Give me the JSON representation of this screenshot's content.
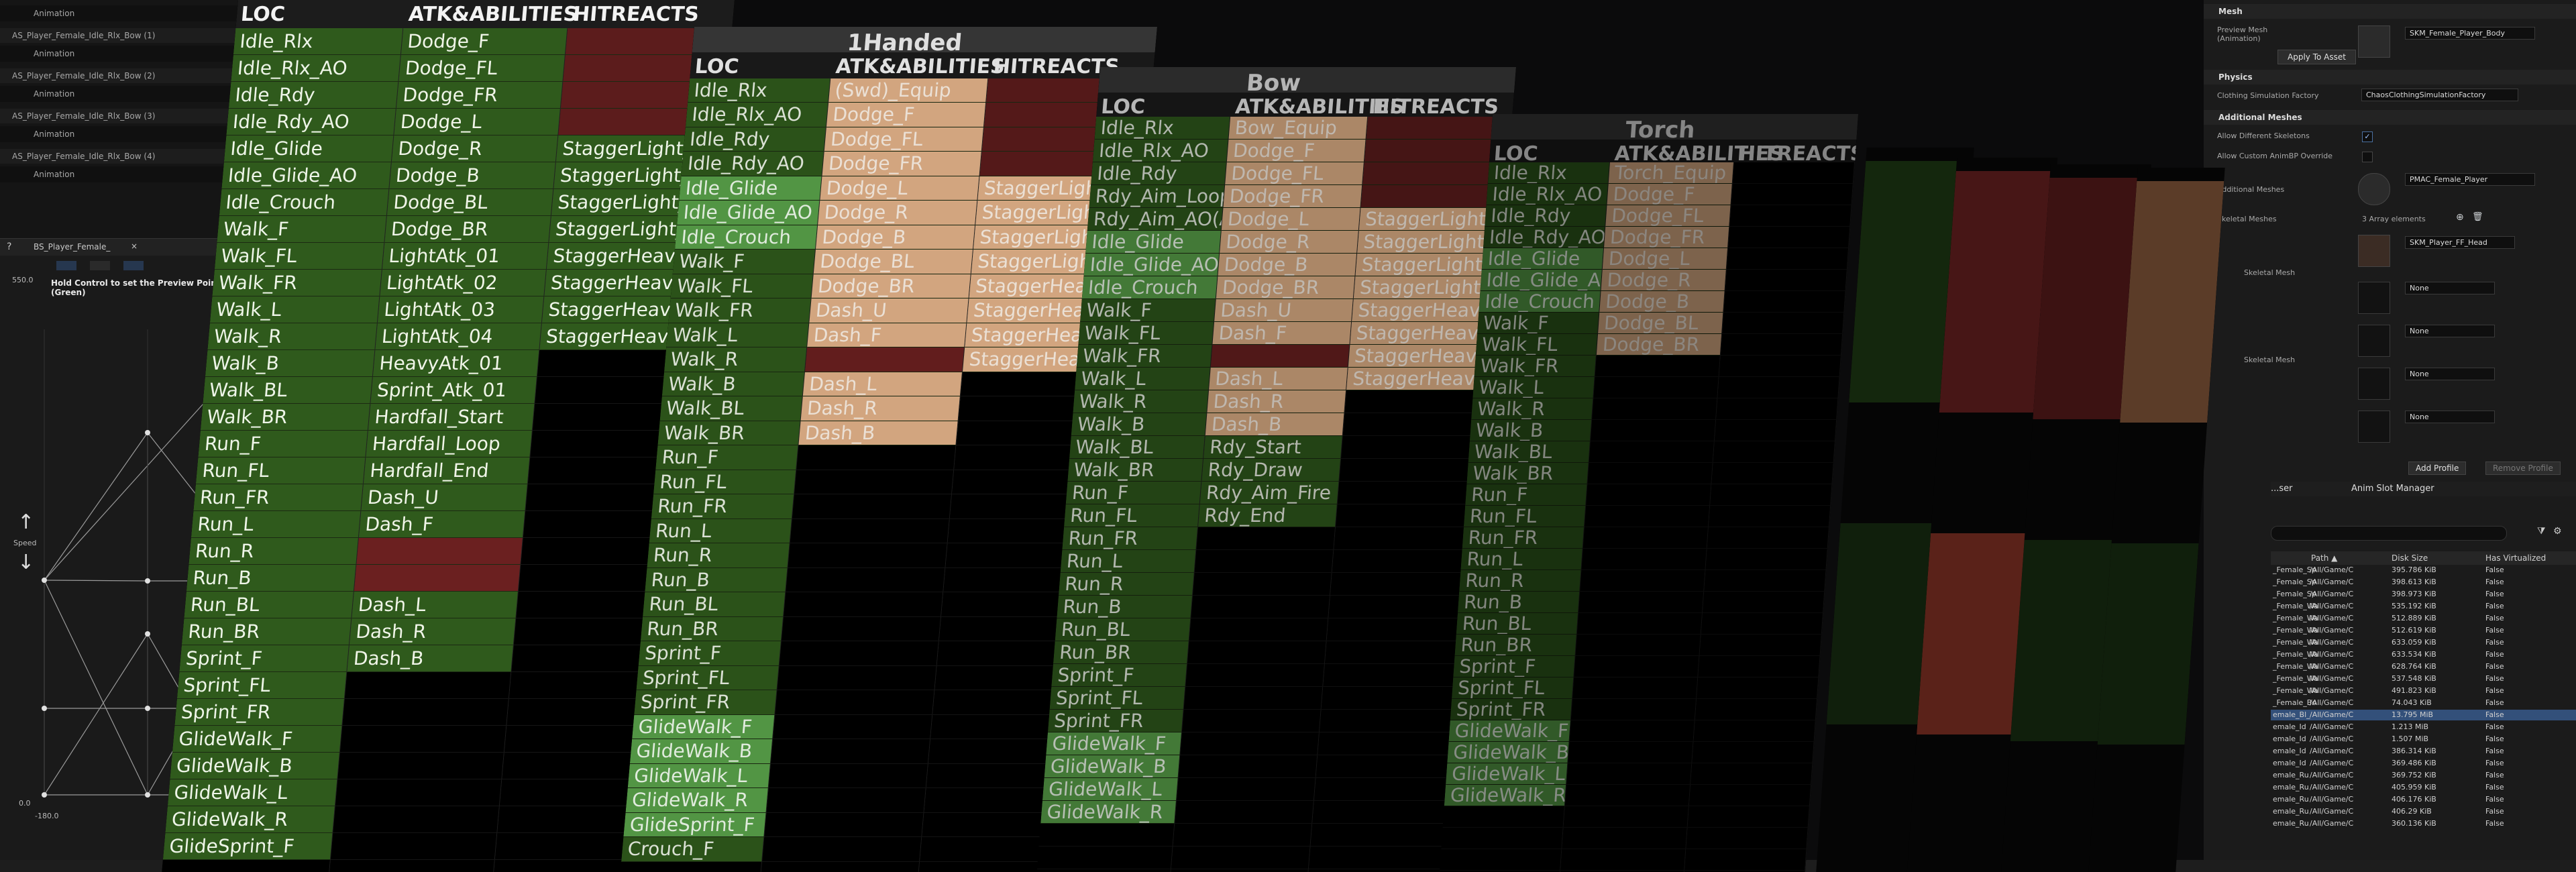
{
  "editor": {
    "left_rows": [
      {
        "kind": "sub",
        "text": "Animation"
      },
      {
        "kind": "grp",
        "text": "AS_Player_Female_Idle_Rlx_Bow (1)"
      },
      {
        "kind": "sub",
        "text": "Animation"
      },
      {
        "kind": "grp",
        "text": "AS_Player_Female_Idle_Rlx_Bow (2)"
      },
      {
        "kind": "sub",
        "text": "Animation"
      },
      {
        "kind": "grp",
        "text": "AS_Player_Female_Idle_Rlx_Bow (3)"
      },
      {
        "kind": "sub",
        "text": "Animation"
      },
      {
        "kind": "grp",
        "text": "AS_Player_Female_Idle_Rlx_Bow (4)"
      },
      {
        "kind": "sub",
        "text": "Animation"
      }
    ],
    "blendspace_tab": "BS_Player_Female_",
    "blendspace_hint": "Hold Control to set the Preview Point (Green)",
    "axis_label": "Speed",
    "y_max": "550.0",
    "y_min": "0.0",
    "x_min": "-180.0",
    "details": {
      "mesh_section": "Mesh",
      "preview_mesh_label": "Preview Mesh (Animation)",
      "preview_mesh_value": "SKM_Female_Player_Body",
      "apply_button": "Apply To Asset",
      "physics_section": "Physics",
      "cloth_label": "Clothing Simulation Factory",
      "cloth_value": "ChaosClothingSimulationFactory",
      "additional_section": "Additional Meshes",
      "allow_skeletons": "Allow Different Skeletons",
      "allow_custom": "Allow Custom AnimBP Override",
      "additional_meshes": "Additional Meshes",
      "additional_value": "PMAC_Female_Player",
      "skeletal_meshes": "Skeletal Meshes",
      "array_elements": "3 Array elements",
      "skm_value": "SKM_Player_FF_Head",
      "none": "None",
      "skeletal_mesh": "Skeletal Mesh",
      "add_profile": "Add Profile",
      "remove_profile": "Remove Profile"
    },
    "browser": {
      "tab_left": "...ser",
      "tab_right": "Anim Slot Manager",
      "col_path": "Path ▲",
      "col_disk": "Disk Size",
      "col_virt": "Has Virtualized",
      "rows": [
        {
          "name": "_Female_Sp",
          "path": "/All/Game/C",
          "size": "395.786 KiB",
          "virt": "False"
        },
        {
          "name": "_Female_Sp",
          "path": "/All/Game/C",
          "size": "398.613 KiB",
          "virt": "False"
        },
        {
          "name": "_Female_Sp",
          "path": "/All/Game/C",
          "size": "398.973 KiB",
          "virt": "False"
        },
        {
          "name": "_Female_Wa",
          "path": "/All/Game/C",
          "size": "535.192 KiB",
          "virt": "False"
        },
        {
          "name": "_Female_Wa",
          "path": "/All/Game/C",
          "size": "512.889 KiB",
          "virt": "False"
        },
        {
          "name": "_Female_Wa",
          "path": "/All/Game/C",
          "size": "512.619 KiB",
          "virt": "False"
        },
        {
          "name": "_Female_Wa",
          "path": "/All/Game/C",
          "size": "633.059 KiB",
          "virt": "False"
        },
        {
          "name": "_Female_Wa",
          "path": "/All/Game/C",
          "size": "633.534 KiB",
          "virt": "False"
        },
        {
          "name": "_Female_Wa",
          "path": "/All/Game/C",
          "size": "628.764 KiB",
          "virt": "False"
        },
        {
          "name": "_Female_Wa",
          "path": "/All/Game/C",
          "size": "537.548 KiB",
          "virt": "False"
        },
        {
          "name": "_Female_Wa",
          "path": "/All/Game/C",
          "size": "491.823 KiB",
          "virt": "False"
        },
        {
          "name": "_Female_Bo",
          "path": "/All/Game/C",
          "size": "74.043 KiB",
          "virt": "False"
        },
        {
          "name": "emale_Bl_",
          "path": "/All/Game/C",
          "size": "13.795 MiB",
          "virt": "False",
          "sel": true
        },
        {
          "name": "emale_Id",
          "path": "/All/Game/C",
          "size": "1.213 MiB",
          "virt": "False"
        },
        {
          "name": "emale_Id",
          "path": "/All/Game/C",
          "size": "1.507 MiB",
          "virt": "False"
        },
        {
          "name": "emale_Id",
          "path": "/All/Game/C",
          "size": "386.314 KiB",
          "virt": "False"
        },
        {
          "name": "emale_Id",
          "path": "/All/Game/C",
          "size": "369.486 KiB",
          "virt": "False"
        },
        {
          "name": "emale_Ru",
          "path": "/All/Game/C",
          "size": "369.752 KiB",
          "virt": "False"
        },
        {
          "name": "emale_Ru",
          "path": "/All/Game/C",
          "size": "405.959 KiB",
          "virt": "False"
        },
        {
          "name": "emale_Ru",
          "path": "/All/Game/C",
          "size": "406.176 KiB",
          "virt": "False"
        },
        {
          "name": "emale_Ru",
          "path": "/All/Game/C",
          "size": "406.29 KiB",
          "virt": "False"
        },
        {
          "name": "emale_Ru",
          "path": "/All/Game/C",
          "size": "360.136 KiB",
          "virt": "False"
        }
      ]
    }
  },
  "sheets": [
    {
      "title": "",
      "headers": [
        "LOC",
        "ATK&ABILITIES",
        "HITREACTS"
      ],
      "loc": [
        "Idle_Rlx",
        "Idle_Rlx_AO",
        "Idle_Rdy",
        "Idle_Rdy_AO",
        "Idle_Glide",
        "Idle_Glide_AO",
        "Idle_Crouch",
        "Walk_F",
        "Walk_FL",
        "Walk_FR",
        "Walk_L",
        "Walk_R",
        "Walk_B",
        "Walk_BL",
        "Walk_BR",
        "Run_F",
        "Run_FL",
        "Run_FR",
        "Run_L",
        "Run_R",
        "Run_B",
        "Run_BL",
        "Run_BR",
        "Sprint_F",
        "Sprint_FL",
        "Sprint_FR",
        "GlideWalk_F",
        "GlideWalk_B",
        "GlideWalk_L",
        "GlideWalk_R",
        "GlideSprint_F"
      ],
      "atk": [
        {
          "t": "Dodge_F",
          "c": "atk"
        },
        {
          "t": "Dodge_FL",
          "c": "atk"
        },
        {
          "t": "Dodge_FR",
          "c": "atk"
        },
        {
          "t": "Dodge_L",
          "c": "atk"
        },
        {
          "t": "Dodge_R",
          "c": "atk"
        },
        {
          "t": "Dodge_B",
          "c": "atk"
        },
        {
          "t": "Dodge_BL",
          "c": "atk"
        },
        {
          "t": "Dodge_BR",
          "c": "atk"
        },
        {
          "t": "LightAtk_01",
          "c": "atk"
        },
        {
          "t": "LightAtk_02",
          "c": "atk"
        },
        {
          "t": "LightAtk_03",
          "c": "atk"
        },
        {
          "t": "LightAtk_04",
          "c": "atk"
        },
        {
          "t": "HeavyAtk_01",
          "c": "atk"
        },
        {
          "t": "Sprint_Atk_01",
          "c": "atk"
        },
        {
          "t": "Hardfall_Start",
          "c": "atk"
        },
        {
          "t": "Hardfall_Loop",
          "c": "atk"
        },
        {
          "t": "Hardfall_End",
          "c": "atk"
        },
        {
          "t": "Dash_U",
          "c": "atk"
        },
        {
          "t": "Dash_F",
          "c": "atk"
        },
        {
          "t": "",
          "c": "atk red"
        },
        {
          "t": "",
          "c": "atk red"
        },
        {
          "t": "Dash_L",
          "c": "atk"
        },
        {
          "t": "Dash_R",
          "c": "atk"
        },
        {
          "t": "Dash_B",
          "c": "atk"
        }
      ],
      "hit": [
        {
          "t": "",
          "c": "hit red"
        },
        {
          "t": "",
          "c": "hit red"
        },
        {
          "t": "",
          "c": "hit red"
        },
        {
          "t": "",
          "c": "hit red"
        },
        {
          "t": "StaggerLight_F",
          "c": "hit"
        },
        {
          "t": "StaggerLight_B",
          "c": "hit"
        },
        {
          "t": "StaggerLight_L",
          "c": "hit"
        },
        {
          "t": "StaggerLight_R",
          "c": "hit"
        },
        {
          "t": "StaggerHeavy_F",
          "c": "hit"
        },
        {
          "t": "StaggerHeavy_B",
          "c": "hit"
        },
        {
          "t": "StaggerHeavy_L",
          "c": "hit"
        },
        {
          "t": "StaggerHeavy_R",
          "c": "hit"
        }
      ],
      "locHighlight": []
    },
    {
      "title": "1Handed",
      "headers": [
        "LOC",
        "ATK&ABILITIES",
        "HITREACTS"
      ],
      "loc": [
        "Idle_Rlx",
        "Idle_Rlx_AO",
        "Idle_Rdy",
        "Idle_Rdy_AO",
        "Idle_Glide",
        "Idle_Glide_AO",
        "Idle_Crouch",
        "Walk_F",
        "Walk_FL",
        "Walk_FR",
        "Walk_L",
        "Walk_R",
        "Walk_B",
        "Walk_BL",
        "Walk_BR",
        "Run_F",
        "Run_FL",
        "Run_FR",
        "Run_L",
        "Run_R",
        "Run_B",
        "Run_BL",
        "Run_BR",
        "Sprint_F",
        "Sprint_FL",
        "Sprint_FR",
        "GlideWalk_F",
        "GlideWalk_B",
        "GlideWalk_L",
        "GlideWalk_R",
        "GlideSprint_F",
        "Crouch_F"
      ],
      "atk": [
        {
          "t": "(Swd)_Equip",
          "c": "atk tan"
        },
        {
          "t": "Dodge_F",
          "c": "atk tan"
        },
        {
          "t": "Dodge_FL",
          "c": "atk tan"
        },
        {
          "t": "Dodge_FR",
          "c": "atk tan"
        },
        {
          "t": "Dodge_L",
          "c": "atk tan"
        },
        {
          "t": "Dodge_R",
          "c": "atk tan"
        },
        {
          "t": "Dodge_B",
          "c": "atk tan"
        },
        {
          "t": "Dodge_BL",
          "c": "atk tan"
        },
        {
          "t": "Dodge_BR",
          "c": "atk tan"
        },
        {
          "t": "Dash_U",
          "c": "atk tan"
        },
        {
          "t": "Dash_F",
          "c": "atk tan"
        },
        {
          "t": "",
          "c": "atk red"
        },
        {
          "t": "Dash_L",
          "c": "atk tan"
        },
        {
          "t": "Dash_R",
          "c": "atk tan"
        },
        {
          "t": "Dash_B",
          "c": "atk tan"
        }
      ],
      "hit": [
        {
          "t": "",
          "c": "hit red"
        },
        {
          "t": "",
          "c": "hit red"
        },
        {
          "t": "",
          "c": "hit red"
        },
        {
          "t": "",
          "c": "hit red"
        },
        {
          "t": "StaggerLight_F",
          "c": "hit tan"
        },
        {
          "t": "StaggerLight_B",
          "c": "hit tan"
        },
        {
          "t": "StaggerLight_L",
          "c": "hit tan"
        },
        {
          "t": "StaggerLight_R",
          "c": "hit tan"
        },
        {
          "t": "StaggerHeavy_F",
          "c": "hit tan"
        },
        {
          "t": "StaggerHeavy_B",
          "c": "hit tan"
        },
        {
          "t": "StaggerHeavy_L",
          "c": "hit tan"
        },
        {
          "t": "StaggerHeavy_R",
          "c": "hit tan"
        }
      ],
      "locHighlight": [
        4,
        5,
        6,
        26,
        27,
        28,
        29,
        30
      ]
    },
    {
      "title": "Bow",
      "headers": [
        "LOC",
        "ATK&ABILITIES",
        "HITREACTS"
      ],
      "loc": [
        "Idle_Rlx",
        "Idle_Rlx_AO",
        "Idle_Rdy",
        "Rdy_Aim_Loop",
        "Rdy_Aim_AO(ADS)",
        "Idle_Glide",
        "Idle_Glide_AO",
        "Idle_Crouch",
        "Walk_F",
        "Walk_FL",
        "Walk_FR",
        "Walk_L",
        "Walk_R",
        "Walk_B",
        "Walk_BL",
        "Walk_BR",
        "Run_F",
        "Run_FL",
        "Run_FR",
        "Run_L",
        "Run_R",
        "Run_B",
        "Run_BL",
        "Run_BR",
        "Sprint_F",
        "Sprint_FL",
        "Sprint_FR",
        "GlideWalk_F",
        "GlideWalk_B",
        "GlideWalk_L",
        "GlideWalk_R"
      ],
      "atk": [
        {
          "t": "Bow_Equip",
          "c": "atk tan"
        },
        {
          "t": "Dodge_F",
          "c": "atk tan"
        },
        {
          "t": "Dodge_FL",
          "c": "atk tan"
        },
        {
          "t": "Dodge_FR",
          "c": "atk tan"
        },
        {
          "t": "Dodge_L",
          "c": "atk tan"
        },
        {
          "t": "Dodge_R",
          "c": "atk tan"
        },
        {
          "t": "Dodge_B",
          "c": "atk tan"
        },
        {
          "t": "Dodge_BR",
          "c": "atk tan"
        },
        {
          "t": "Dash_U",
          "c": "atk tan"
        },
        {
          "t": "Dash_F",
          "c": "atk tan"
        },
        {
          "t": "",
          "c": "atk red"
        },
        {
          "t": "Dash_L",
          "c": "atk tan"
        },
        {
          "t": "Dash_R",
          "c": "atk tan"
        },
        {
          "t": "Dash_B",
          "c": "atk tan"
        },
        {
          "t": "Rdy_Start",
          "c": "atk"
        },
        {
          "t": "Rdy_Draw",
          "c": "atk"
        },
        {
          "t": "Rdy_Aim_Fire",
          "c": "atk"
        },
        {
          "t": "Rdy_End",
          "c": "atk"
        }
      ],
      "hit": [
        {
          "t": "",
          "c": "hit red"
        },
        {
          "t": "",
          "c": "hit red"
        },
        {
          "t": "",
          "c": "hit red"
        },
        {
          "t": "",
          "c": "hit red"
        },
        {
          "t": "StaggerLight_F",
          "c": "hit tan"
        },
        {
          "t": "StaggerLight_B",
          "c": "hit tan"
        },
        {
          "t": "StaggerLight_L",
          "c": "hit tan"
        },
        {
          "t": "StaggerLight_R",
          "c": "hit tan"
        },
        {
          "t": "StaggerHeavy_F",
          "c": "hit tan"
        },
        {
          "t": "StaggerHeavy_B",
          "c": "hit tan"
        },
        {
          "t": "StaggerHeavy_L",
          "c": "hit tan"
        },
        {
          "t": "StaggerHeavy_R",
          "c": "hit tan"
        }
      ],
      "locHighlight": [
        5,
        6,
        7,
        27,
        28,
        29,
        30
      ]
    },
    {
      "title": "Torch",
      "headers": [
        "LOC",
        "ATK&ABILITIES",
        "HITREACTS"
      ],
      "loc": [
        "Idle_Rlx",
        "Idle_Rlx_AO",
        "Idle_Rdy",
        "Idle_Rdy_AO",
        "Idle_Glide",
        "Idle_Glide_AO",
        "Idle_Crouch",
        "Walk_F",
        "Walk_FL",
        "Walk_FR",
        "Walk_L",
        "Walk_R",
        "Walk_B",
        "Walk_BL",
        "Walk_BR",
        "Run_F",
        "Run_FL",
        "Run_FR",
        "Run_L",
        "Run_R",
        "Run_B",
        "Run_BL",
        "Run_BR",
        "Sprint_F",
        "Sprint_FL",
        "Sprint_FR",
        "GlideWalk_F",
        "GlideWalk_B",
        "GlideWalk_L",
        "GlideWalk_R"
      ],
      "atk": [
        {
          "t": "Torch_Equip",
          "c": "atk tan"
        },
        {
          "t": "Dodge_F",
          "c": "atk tan"
        },
        {
          "t": "Dodge_FL",
          "c": "atk tan"
        },
        {
          "t": "Dodge_FR",
          "c": "atk tan"
        },
        {
          "t": "Dodge_L",
          "c": "atk tan"
        },
        {
          "t": "Dodge_R",
          "c": "atk tan"
        },
        {
          "t": "Dodge_B",
          "c": "atk tan"
        },
        {
          "t": "Dodge_BL",
          "c": "atk tan"
        },
        {
          "t": "Dodge_BR",
          "c": "atk tan"
        }
      ],
      "hit": [],
      "locHighlight": [
        4,
        5,
        6,
        26,
        27,
        28,
        29
      ]
    }
  ]
}
